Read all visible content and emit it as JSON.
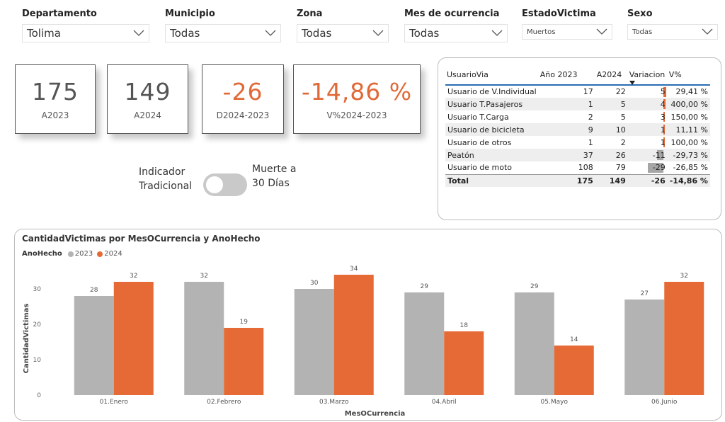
{
  "filters": [
    {
      "title": "Departamento",
      "value": "Tolima",
      "size": "big"
    },
    {
      "title": "Municipio",
      "value": "Todas",
      "size": "big"
    },
    {
      "title": "Zona",
      "value": "Todas",
      "size": "big"
    },
    {
      "title": "Mes de ocurrencia",
      "value": "Todas",
      "size": "big"
    },
    {
      "title": "EstadoVictima",
      "value": "Muertos",
      "size": "small"
    },
    {
      "title": "Sexo",
      "value": "Todas",
      "size": "small"
    }
  ],
  "cards": [
    {
      "value": "175",
      "label": "A2023"
    },
    {
      "value": "149",
      "label": "A2024"
    },
    {
      "value": "-26",
      "label": "D2024-2023"
    },
    {
      "value": "-14,86 %",
      "label": "V%2024-2023"
    }
  ],
  "toggle": {
    "left_label": "Indicador\nTradicional",
    "right_label": "Muerte a\n30 Días",
    "on": false
  },
  "matrix": {
    "headers": [
      "UsuarioVia",
      "Año 2023",
      "A2024",
      "Variacion",
      "V%"
    ],
    "rows": [
      {
        "name": "Usuario de V.Individual",
        "a2023": "17",
        "a2024": "22",
        "var": 5,
        "pct": "29,41 %"
      },
      {
        "name": "Usuario T.Pasajeros",
        "a2023": "1",
        "a2024": "5",
        "var": 4,
        "pct": "400,00 %"
      },
      {
        "name": "Usuario T.Carga",
        "a2023": "2",
        "a2024": "5",
        "var": 3,
        "pct": "150,00 %"
      },
      {
        "name": "Usuario de bicicleta",
        "a2023": "9",
        "a2024": "10",
        "var": 1,
        "pct": "11,11 %"
      },
      {
        "name": "Usuario de otros",
        "a2023": "1",
        "a2024": "2",
        "var": 1,
        "pct": "100,00 %"
      },
      {
        "name": "Peatón",
        "a2023": "37",
        "a2024": "26",
        "var": -11,
        "pct": "-29,73 %"
      },
      {
        "name": "Usuario de moto",
        "a2023": "108",
        "a2024": "79",
        "var": -29,
        "pct": "-26,85 %"
      }
    ],
    "total": {
      "name": "Total",
      "a2023": "175",
      "a2024": "149",
      "var": "-26",
      "pct": "-14,86 %"
    }
  },
  "chart_data": {
    "type": "bar",
    "title": "CantidadVictimas por MesOCurrencia y AnoHecho",
    "legend_title": "AnoHecho",
    "xlabel": "MesOCurrencia",
    "ylabel": "CantidadVictimas",
    "categories": [
      "01.Enero",
      "02.Febrero",
      "03.Marzo",
      "04.Abril",
      "05.Mayo",
      "06.Junio"
    ],
    "series": [
      {
        "name": "2023",
        "values": [
          28,
          32,
          30,
          29,
          29,
          27
        ],
        "color": "#b3b3b3"
      },
      {
        "name": "2024",
        "values": [
          32,
          19,
          34,
          18,
          14,
          32
        ],
        "color": "#e66a35"
      }
    ],
    "yticks": [
      0,
      10,
      20,
      30
    ],
    "ylim": [
      0,
      36
    ],
    "grid": false,
    "legend_position": "top-left"
  },
  "colors": {
    "accent": "#e06a37",
    "gray_bar": "#b3b3b3",
    "neg_bar": "#a6a6a6",
    "header_line": "#2a6db5"
  }
}
